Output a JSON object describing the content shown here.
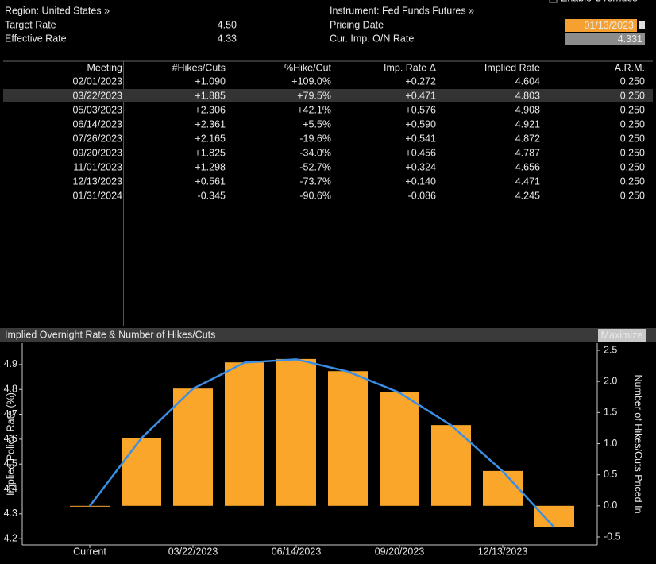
{
  "header": {
    "overrides": "Enable Overrides",
    "region": "Region: United States »",
    "instrument": "Instrument: Fed Funds Futures »",
    "fields": [
      {
        "label": "Target Rate",
        "value": "4.50"
      },
      {
        "label": "Effective Rate",
        "value": "4.33"
      }
    ],
    "pricing_date_label": "Pricing Date",
    "pricing_date": "01/13/2023",
    "imp_rate_label": "Cur. Imp. O/N Rate",
    "imp_rate": "4.331"
  },
  "table": {
    "columns": [
      "Meeting",
      "#Hikes/Cuts",
      "%Hike/Cut",
      "Imp. Rate Δ",
      "Implied Rate",
      "A.R.M."
    ],
    "rows": [
      [
        "02/01/2023",
        "+1.090",
        "+109.0%",
        "+0.272",
        "4.604",
        "0.250"
      ],
      [
        "03/22/2023",
        "+1.885",
        "+79.5%",
        "+0.471",
        "4.803",
        "0.250"
      ],
      [
        "05/03/2023",
        "+2.306",
        "+42.1%",
        "+0.576",
        "4.908",
        "0.250"
      ],
      [
        "06/14/2023",
        "+2.361",
        "+5.5%",
        "+0.590",
        "4.921",
        "0.250"
      ],
      [
        "07/26/2023",
        "+2.165",
        "-19.6%",
        "+0.541",
        "4.872",
        "0.250"
      ],
      [
        "09/20/2023",
        "+1.825",
        "-34.0%",
        "+0.456",
        "4.787",
        "0.250"
      ],
      [
        "11/01/2023",
        "+1.298",
        "-52.7%",
        "+0.324",
        "4.656",
        "0.250"
      ],
      [
        "12/13/2023",
        "+0.561",
        "-73.7%",
        "+0.140",
        "4.471",
        "0.250"
      ],
      [
        "01/31/2024",
        "-0.345",
        "-90.6%",
        "-0.086",
        "4.245",
        "0.250"
      ]
    ]
  },
  "ui": {
    "maximize": "Maximize"
  },
  "chart_data": {
    "type": "combo",
    "title": "Implied Overnight Rate & Number of Hikes/Cuts",
    "ylabel": "Implied Policy Rate (%)",
    "y2label": "Number of Hikes/Cuts Priced In",
    "categories": [
      "Current",
      null,
      "03/22/2023",
      null,
      "06/14/2023",
      null,
      "09/20/2023",
      null,
      "12/13/2023",
      null
    ],
    "series": [
      {
        "type": "bar",
        "axis": "y2",
        "color": "#f9a62b",
        "values": [
          0,
          1.09,
          1.885,
          2.306,
          2.361,
          2.165,
          1.825,
          1.298,
          0.561,
          -0.345
        ]
      },
      {
        "type": "line",
        "axis": "y",
        "color": "#3b8ee6",
        "values": [
          4.331,
          4.604,
          4.803,
          4.908,
          4.921,
          4.872,
          4.787,
          4.656,
          4.471,
          4.245
        ]
      }
    ],
    "ylim": [
      4.175,
      4.986
    ],
    "yticks": [
      4.2,
      4.3,
      4.4,
      4.5,
      4.6,
      4.7,
      4.8,
      4.9
    ],
    "y2lim": [
      -0.628,
      2.615
    ],
    "y2ticks": [
      -0.5,
      {
        "value": 0,
        "label": "0.0"
      },
      0.5,
      {
        "value": 1,
        "label": "1.0"
      },
      1.5,
      {
        "value": 2,
        "label": "2.0"
      },
      2.5
    ],
    "grid": false
  }
}
